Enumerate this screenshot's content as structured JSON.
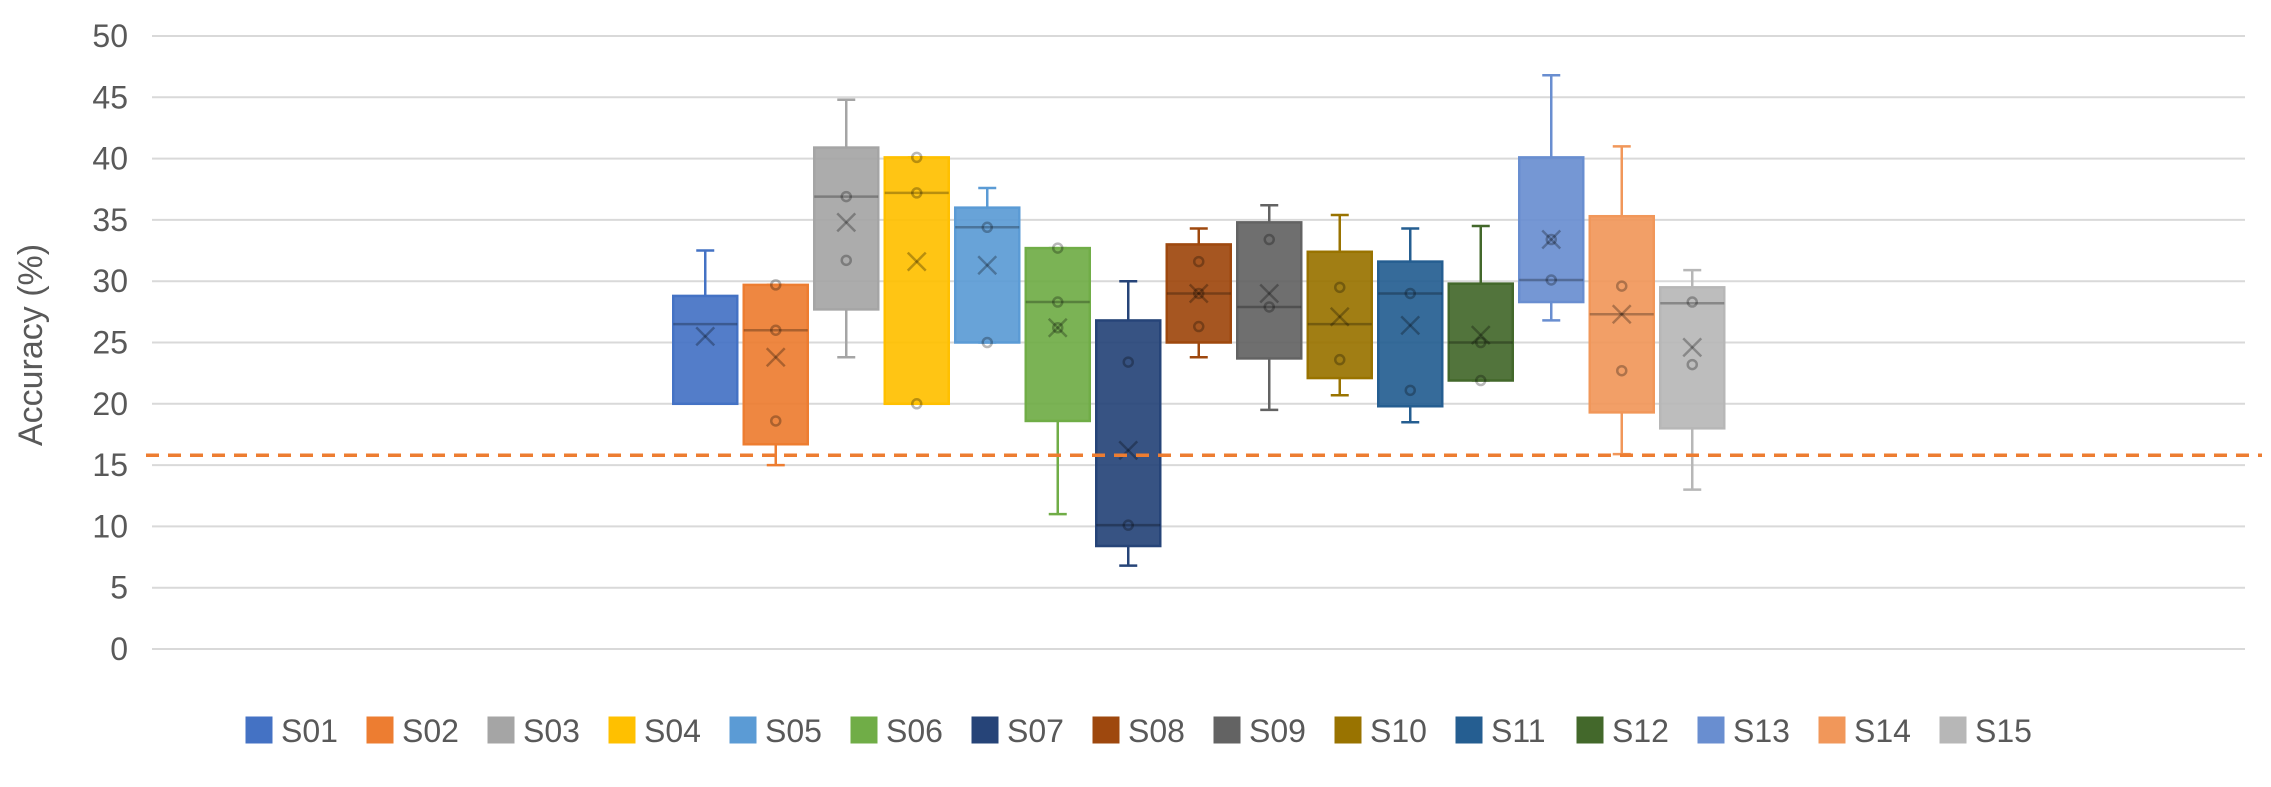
{
  "chart_data": {
    "type": "box",
    "title": "",
    "xlabel": "",
    "ylabel": "Accuracy (%)",
    "ylim": [
      0,
      50
    ],
    "yticks": [
      0,
      5,
      10,
      15,
      20,
      25,
      30,
      35,
      40,
      45,
      50
    ],
    "grid": true,
    "legend_position": "bottom",
    "chance_level": {
      "value": 15.8,
      "color": "#ED7D31",
      "style": "dashed"
    },
    "series": [
      {
        "name": "S01",
        "color": "#4472C4",
        "whisker_min": 20,
        "q1": 20,
        "median": 26.5,
        "q3": 28.8,
        "whisker_max": 32.5,
        "mean": 25.5,
        "points": []
      },
      {
        "name": "S02",
        "color": "#ED7D31",
        "whisker_min": 15,
        "q1": 16.7,
        "median": 26,
        "q3": 29.7,
        "whisker_max": 29.7,
        "mean": 23.8,
        "points": [
          18.6,
          26,
          29.7
        ]
      },
      {
        "name": "S03",
        "color": "#A5A5A5",
        "whisker_min": 23.8,
        "q1": 27.7,
        "median": 36.9,
        "q3": 40.9,
        "whisker_max": 44.8,
        "mean": 34.8,
        "points": [
          31.7,
          36.9
        ]
      },
      {
        "name": "S04",
        "color": "#FFC000",
        "whisker_min": 20,
        "q1": 20,
        "median": 37.2,
        "q3": 40.1,
        "whisker_max": 40.1,
        "mean": 31.6,
        "points": [
          20,
          37.2,
          40.1
        ]
      },
      {
        "name": "S05",
        "color": "#5B9BD5",
        "whisker_min": 25,
        "q1": 25,
        "median": 34.4,
        "q3": 36,
        "whisker_max": 37.6,
        "mean": 31.3,
        "points": [
          25,
          34.4
        ]
      },
      {
        "name": "S06",
        "color": "#70AD47",
        "whisker_min": 11,
        "q1": 18.6,
        "median": 28.3,
        "q3": 32.7,
        "whisker_max": 32.7,
        "mean": 26.2,
        "points": [
          26.2,
          28.3,
          32.7
        ]
      },
      {
        "name": "S07",
        "color": "#264478",
        "whisker_min": 6.8,
        "q1": 8.4,
        "median": 10.1,
        "q3": 26.8,
        "whisker_max": 30,
        "mean": 16.2,
        "points": [
          10.1,
          23.4
        ]
      },
      {
        "name": "S08",
        "color": "#9E480E",
        "whisker_min": 23.8,
        "q1": 25,
        "median": 29,
        "q3": 33,
        "whisker_max": 34.3,
        "mean": 29,
        "points": [
          26.3,
          29,
          31.6
        ]
      },
      {
        "name": "S09",
        "color": "#636363",
        "whisker_min": 19.5,
        "q1": 23.7,
        "median": 27.9,
        "q3": 34.8,
        "whisker_max": 36.2,
        "mean": 29,
        "points": [
          27.9,
          33.4
        ]
      },
      {
        "name": "S10",
        "color": "#997300",
        "whisker_min": 20.7,
        "q1": 22.1,
        "median": 26.5,
        "q3": 32.4,
        "whisker_max": 35.4,
        "mean": 27.1,
        "points": [
          23.6,
          29.5
        ]
      },
      {
        "name": "S11",
        "color": "#255E91",
        "whisker_min": 18.5,
        "q1": 19.8,
        "median": 29,
        "q3": 31.6,
        "whisker_max": 34.3,
        "mean": 26.4,
        "points": [
          21.1,
          29
        ]
      },
      {
        "name": "S12",
        "color": "#43682B",
        "whisker_min": 21.9,
        "q1": 21.9,
        "median": 25,
        "q3": 29.8,
        "whisker_max": 34.5,
        "mean": 25.6,
        "points": [
          21.9,
          25
        ]
      },
      {
        "name": "S13",
        "color": "#698ED0",
        "whisker_min": 26.8,
        "q1": 28.3,
        "median": 30.1,
        "q3": 40.1,
        "whisker_max": 46.8,
        "mean": 33.4,
        "points": [
          30.1,
          33.4
        ]
      },
      {
        "name": "S14",
        "color": "#F1975A",
        "whisker_min": 15.9,
        "q1": 19.3,
        "median": 27.3,
        "q3": 35.3,
        "whisker_max": 41,
        "mean": 27.3,
        "points": [
          22.7,
          29.6
        ]
      },
      {
        "name": "S15",
        "color": "#B7B7B7",
        "whisker_min": 13,
        "q1": 18,
        "median": 28.2,
        "q3": 29.5,
        "whisker_max": 30.9,
        "mean": 24.6,
        "points": [
          23.2,
          28.3
        ]
      }
    ]
  }
}
